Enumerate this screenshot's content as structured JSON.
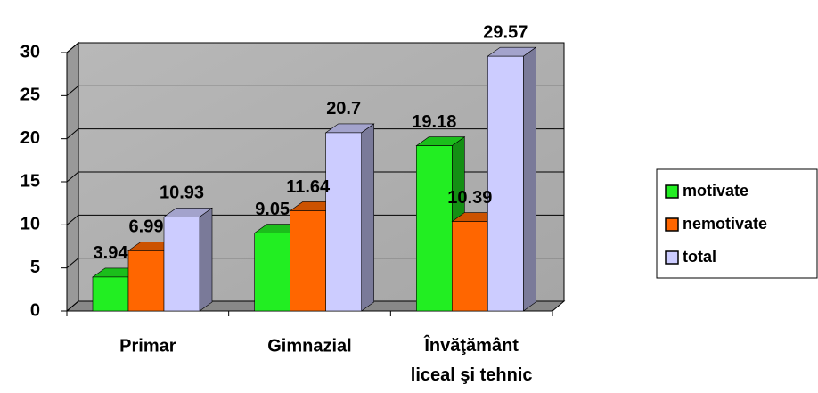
{
  "chart_data": {
    "type": "bar3d",
    "categories": [
      "Primar",
      "Gimnazial",
      "Învăţământ liceal şi tehnic"
    ],
    "series": [
      {
        "name": "motivate",
        "color": "#22ee22",
        "values": [
          3.94,
          9.05,
          19.18
        ]
      },
      {
        "name": "nemotivate",
        "color": "#ff6600",
        "values": [
          6.99,
          11.64,
          10.39
        ]
      },
      {
        "name": "total",
        "color": "#ccccff",
        "values": [
          10.93,
          20.7,
          29.57
        ]
      }
    ],
    "ylim": [
      0,
      30
    ],
    "yticks": [
      0,
      5,
      10,
      15,
      20,
      25,
      30
    ],
    "grid": true,
    "legend": "right"
  }
}
